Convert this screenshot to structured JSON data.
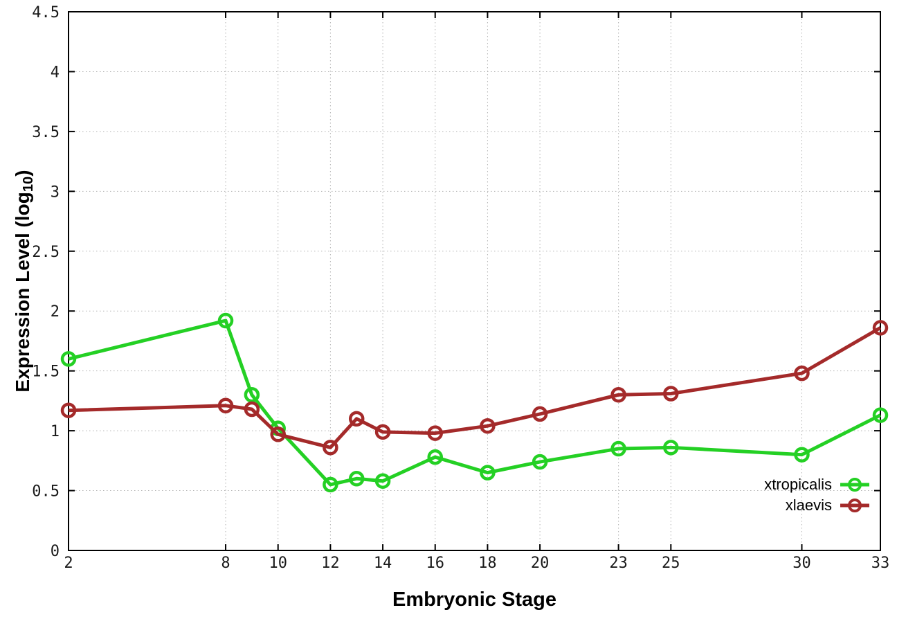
{
  "axes": {
    "x_label": "Embryonic Stage",
    "y_label_main": "Expression Level (log",
    "y_label_sub": "10",
    "y_label_close": ")"
  },
  "style": {
    "background": "#ffffff",
    "grid_color": "#b2b2b2",
    "axis_color": "#000000",
    "tick_label_color": "#1a1a1a"
  },
  "chart_data": {
    "type": "line",
    "title": "",
    "xlabel": "Embryonic Stage",
    "ylabel": "Expression Level (log10)",
    "xlim": [
      2,
      33
    ],
    "ylim": [
      0,
      4.5
    ],
    "x_ticks": [
      2,
      8,
      10,
      12,
      14,
      16,
      18,
      20,
      23,
      25,
      30,
      33
    ],
    "y_ticks": [
      0,
      0.5,
      1,
      1.5,
      2,
      2.5,
      3,
      3.5,
      4,
      4.5
    ],
    "grid": true,
    "legend_position": "bottom-right",
    "x": [
      2,
      8,
      9,
      10,
      12,
      13,
      14,
      16,
      18,
      20,
      23,
      25,
      30,
      33
    ],
    "series": [
      {
        "name": "xtropicalis",
        "color": "#24d024",
        "marker": "open-circle",
        "values": [
          1.6,
          1.92,
          1.3,
          1.02,
          0.55,
          0.6,
          0.58,
          0.78,
          0.65,
          0.74,
          0.85,
          0.86,
          0.8,
          1.13
        ]
      },
      {
        "name": "xlaevis",
        "color": "#a42a2a",
        "marker": "open-circle",
        "values": [
          1.17,
          1.21,
          1.18,
          0.97,
          0.86,
          1.1,
          0.99,
          0.98,
          1.04,
          1.14,
          1.3,
          1.31,
          1.48,
          1.86
        ]
      }
    ]
  }
}
